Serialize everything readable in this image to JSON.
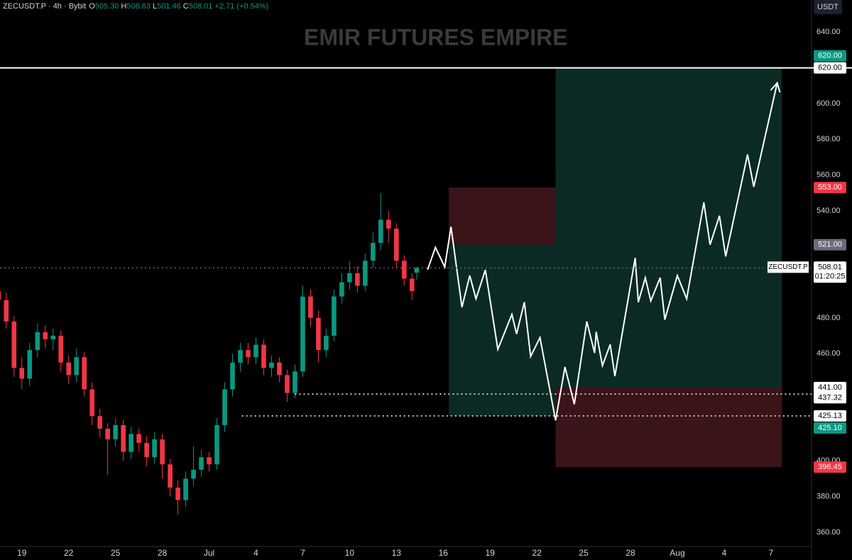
{
  "chart_data": {
    "type": "candlestick",
    "header": {
      "symbol": "ZECUSDT.P · 4h · Bybit",
      "ohlc": [
        {
          "key": "O",
          "value": "505.30"
        },
        {
          "key": "H",
          "value": "508.63"
        },
        {
          "key": "L",
          "value": "501.46"
        },
        {
          "key": "C",
          "value": "508.01"
        }
      ],
      "change": "+2.71 (+0.54%)"
    },
    "watermark": "EMIR FUTURES EMPIRE",
    "currency": "USDT",
    "up_color": "#089981",
    "down_color": "#f23645",
    "xlim": [
      -1.4,
      50.6
    ],
    "ylim": [
      352,
      658
    ],
    "xticks": [
      {
        "value": 0,
        "label": "19"
      },
      {
        "value": 3,
        "label": "22"
      },
      {
        "value": 6,
        "label": "25"
      },
      {
        "value": 9,
        "label": "28"
      },
      {
        "value": 12,
        "label": "Jul"
      },
      {
        "value": 15,
        "label": "4"
      },
      {
        "value": 18,
        "label": "7"
      },
      {
        "value": 21,
        "label": "10"
      },
      {
        "value": 24,
        "label": "13"
      },
      {
        "value": 27,
        "label": "16"
      },
      {
        "value": 30,
        "label": "19"
      },
      {
        "value": 33,
        "label": "22"
      },
      {
        "value": 36,
        "label": "25"
      },
      {
        "value": 39,
        "label": "28"
      },
      {
        "value": 42,
        "label": "Aug"
      },
      {
        "value": 45,
        "label": "4"
      },
      {
        "value": 48,
        "label": "7"
      }
    ],
    "yticks": [
      {
        "value": 360,
        "label": "360.00"
      },
      {
        "value": 380,
        "label": "380.00"
      },
      {
        "value": 400,
        "label": "400.00"
      },
      {
        "value": 460,
        "label": "460.00"
      },
      {
        "value": 480,
        "label": "480.00"
      },
      {
        "value": 540,
        "label": "540.00"
      },
      {
        "value": 560,
        "label": "560.00"
      },
      {
        "value": 580,
        "label": "580.00"
      },
      {
        "value": 600,
        "label": "600.00"
      },
      {
        "value": 640,
        "label": "640.00"
      }
    ],
    "candles": {
      "x": [
        -1.5,
        -1,
        -0.5,
        0,
        0.5,
        1,
        1.5,
        2,
        2.5,
        3,
        3.5,
        4,
        4.5,
        5,
        5.5,
        6,
        6.5,
        7,
        7.5,
        8,
        8.5,
        9,
        9.5,
        10,
        10.5,
        11,
        11.5,
        12,
        12.5,
        13,
        13.5,
        14,
        14.5,
        15,
        15.5,
        16,
        16.5,
        17,
        17.5,
        18,
        18.5,
        19,
        19.5,
        20,
        20.5,
        21,
        21.5,
        22,
        22.5,
        23,
        23.5,
        24,
        24.5,
        25,
        25.3
      ],
      "open": [
        495,
        490,
        478,
        452,
        446,
        462,
        472,
        468,
        470,
        455,
        448,
        458,
        440,
        425,
        418,
        412,
        420,
        405,
        415,
        410,
        402,
        412,
        398,
        385,
        378,
        390,
        395,
        402,
        398,
        420,
        440,
        455,
        462,
        458,
        465,
        452,
        455,
        448,
        438,
        450,
        492,
        480,
        462,
        470,
        492,
        500,
        505,
        498,
        512,
        522,
        535,
        530,
        512,
        502,
        505.3
      ],
      "high": [
        500,
        494,
        481,
        458,
        466,
        477,
        476,
        474,
        473,
        459,
        463,
        461,
        444,
        429,
        421,
        424,
        423,
        419,
        418,
        414,
        416,
        415,
        401,
        389,
        394,
        408,
        406,
        405,
        424,
        444,
        460,
        466,
        466,
        469,
        468,
        459,
        458,
        451,
        454,
        498,
        496,
        484,
        474,
        496,
        505,
        512,
        509,
        516,
        528,
        550,
        540,
        533,
        515,
        505,
        508.63
      ],
      "low": [
        485,
        474,
        447,
        440,
        442,
        458,
        463,
        462,
        450,
        443,
        444,
        436,
        420,
        413,
        392,
        408,
        400,
        401,
        405,
        397,
        398,
        390,
        380,
        370,
        374,
        386,
        391,
        394,
        395,
        416,
        436,
        450,
        454,
        454,
        448,
        447,
        444,
        433,
        435,
        447,
        475,
        455,
        458,
        467,
        488,
        496,
        494,
        495,
        508,
        518,
        522,
        508,
        498,
        490,
        501.46
      ],
      "close": [
        490,
        478,
        452,
        446,
        462,
        472,
        468,
        470,
        455,
        448,
        458,
        440,
        425,
        418,
        412,
        420,
        405,
        415,
        410,
        402,
        412,
        398,
        385,
        378,
        390,
        395,
        402,
        398,
        420,
        440,
        455,
        462,
        458,
        465,
        452,
        455,
        448,
        438,
        450,
        492,
        480,
        462,
        470,
        492,
        500,
        505,
        498,
        512,
        522,
        535,
        530,
        512,
        502,
        495,
        508.01
      ]
    },
    "zones": [
      {
        "x": [
          27.35,
          34.2
        ],
        "y": [
          521,
          553
        ],
        "color": "#3a1418"
      },
      {
        "x": [
          27.35,
          34.2
        ],
        "y": [
          425.1,
          521
        ],
        "color": "#0b2a24"
      },
      {
        "x": [
          34.2,
          48.7
        ],
        "y": [
          441,
          620
        ],
        "color": "#0b2a24"
      },
      {
        "x": [
          34.2,
          48.7
        ],
        "y": [
          396.45,
          441
        ],
        "color": "#3a1418"
      }
    ],
    "levels": [
      {
        "value": 620,
        "from": -1.4,
        "color": "#ffffff",
        "style": "solid"
      },
      {
        "value": 508.01,
        "from": -1.4,
        "color": "#666666",
        "style": "dotted"
      },
      {
        "value": 437.32,
        "from": 17.5,
        "color": "#ffffff",
        "style": "dotted"
      },
      {
        "value": 425.13,
        "from": 14.1,
        "color": "#ffffff",
        "style": "dotted"
      }
    ],
    "projection": {
      "color": "#ffffff",
      "x": [
        26.0,
        26.5,
        27.1,
        27.5,
        28.2,
        28.7,
        29.1,
        29.7,
        30.5,
        31.4,
        31.7,
        32.2,
        32.6,
        33.2,
        34.2,
        34.8,
        35.4,
        36.2,
        36.7,
        36.8,
        37.2,
        37.7,
        38.0,
        39.3,
        39.5,
        39.95,
        40.3,
        40.9,
        41.2,
        42.0,
        42.6,
        43.7,
        44.1,
        44.7,
        45.1,
        46.5,
        46.9,
        48.4
      ],
      "y": [
        507,
        519.5,
        508.5,
        531,
        486,
        503.7,
        490.7,
        506.9,
        462.4,
        482,
        471,
        488.8,
        458.4,
        469,
        422.6,
        452.5,
        431.7,
        478,
        460.4,
        472.2,
        453.3,
        465.1,
        447.4,
        513.6,
        488.8,
        502.5,
        489.5,
        502.5,
        479,
        503.7,
        490.7,
        544.7,
        521,
        537.2,
        514.4,
        571.5,
        553.4,
        611.6
      ]
    },
    "price_tags": [
      {
        "value": 620,
        "label": "620.00",
        "color": "#089981",
        "offset": -1
      },
      {
        "value": 620,
        "label": "620.00",
        "color": "#ffffff",
        "offset": 0
      },
      {
        "value": 553,
        "label": "553.00",
        "color": "#f23645",
        "offset": 0
      },
      {
        "value": 521,
        "label": "521.00",
        "color": "#6a6d78",
        "offset": 0
      },
      {
        "value": 441,
        "label": "441.00",
        "color": "#ffffff",
        "offset": 0
      },
      {
        "value": 437.32,
        "label": "437.32",
        "color": "#ffffff",
        "offset": 0.3
      },
      {
        "value": 425.13,
        "label": "425.13",
        "color": "#ffffff",
        "offset": 0
      },
      {
        "value": 425.1,
        "label": "425.10",
        "color": "#089981",
        "offset": 1
      },
      {
        "value": 396.45,
        "label": "396.45",
        "color": "#f23645",
        "offset": 0
      }
    ],
    "last": {
      "symbol": "ZECUSDT.P",
      "value": 508.01,
      "label": "508.01",
      "countdown": "01:20:25"
    }
  }
}
